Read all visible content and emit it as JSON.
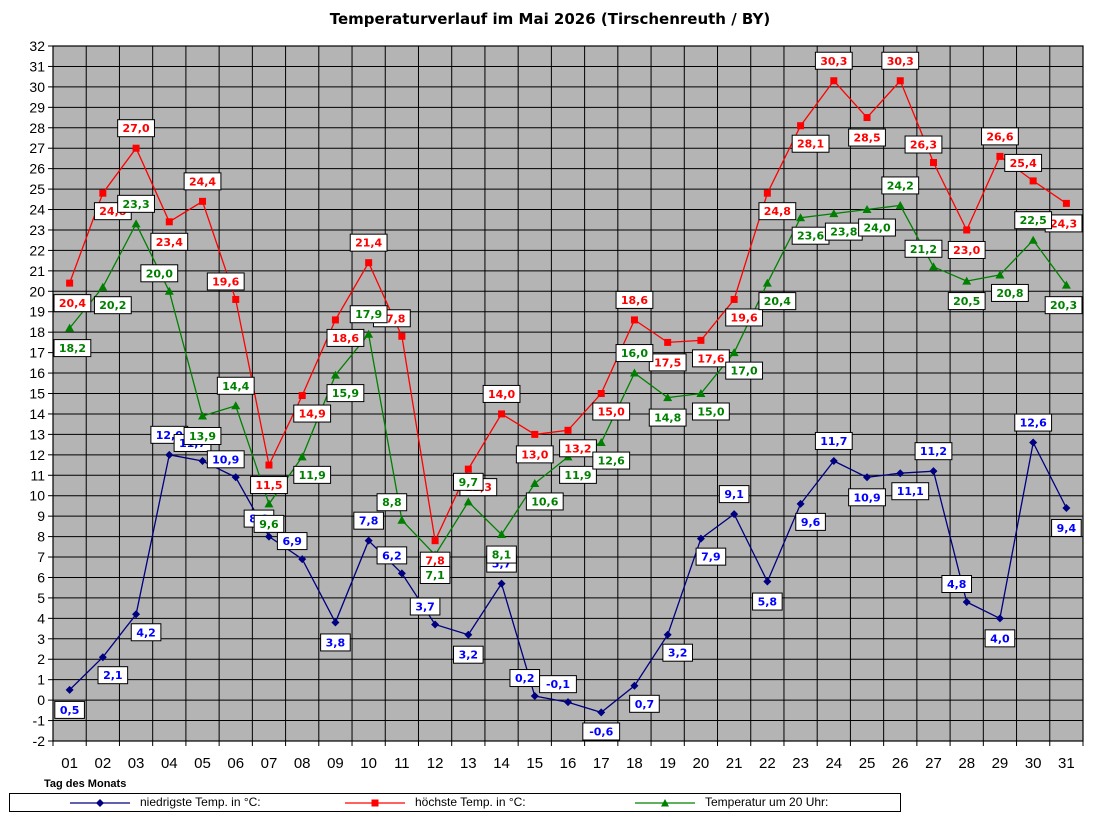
{
  "chart_data": {
    "type": "line",
    "title": "Temperaturverlauf im Mai 2026 (Tirschenreuth / BY)",
    "xlabel": "Tag des Monats",
    "ylabel": "",
    "ylim": [
      -2,
      32
    ],
    "y_ticks": [
      -2,
      -1,
      0,
      1,
      2,
      3,
      4,
      5,
      6,
      7,
      8,
      9,
      10,
      11,
      12,
      13,
      14,
      15,
      16,
      17,
      18,
      19,
      20,
      21,
      22,
      23,
      24,
      25,
      26,
      27,
      28,
      29,
      30,
      31,
      32
    ],
    "grid": true,
    "legend_position": "bottom",
    "categories": [
      "01",
      "02",
      "03",
      "04",
      "05",
      "06",
      "07",
      "08",
      "09",
      "10",
      "11",
      "12",
      "13",
      "14",
      "15",
      "16",
      "17",
      "18",
      "19",
      "20",
      "21",
      "22",
      "23",
      "24",
      "25",
      "26",
      "27",
      "28",
      "29",
      "30",
      "31"
    ],
    "series": [
      {
        "name": "niedrigste Temp. in °C:",
        "color": "#000080",
        "label_color": "#0000ff",
        "marker": "diamond",
        "values": [
          0.5,
          2.1,
          4.2,
          12.0,
          11.7,
          10.9,
          8.0,
          6.9,
          3.8,
          7.8,
          6.2,
          3.7,
          3.2,
          5.7,
          0.2,
          -0.1,
          -0.6,
          0.7,
          3.2,
          7.9,
          9.1,
          5.8,
          9.6,
          11.7,
          10.9,
          11.1,
          11.2,
          4.8,
          4.0,
          12.6,
          9.4
        ],
        "labels": [
          "0,5",
          "2,1",
          "4,2",
          "12,0",
          "11,7",
          "10,9",
          "8,0",
          "6,9",
          "3,8",
          "7,8",
          "6,2",
          "3,7",
          "3,2",
          "5,7",
          "0,2",
          "-0,1",
          "-0,6",
          "0,7",
          "3,2",
          "7,9",
          "9,1",
          "5,8",
          "9,6",
          "11,7",
          "10,9",
          "11,1",
          "11,2",
          "4,8",
          "4,0",
          "12,6",
          "9,4"
        ]
      },
      {
        "name": "höchste Temp. in °C:",
        "color": "#ff0000",
        "label_color": "#ff0000",
        "marker": "square",
        "values": [
          20.4,
          24.8,
          27.0,
          23.4,
          24.4,
          19.6,
          11.5,
          14.9,
          18.6,
          21.4,
          17.8,
          7.8,
          11.3,
          14.0,
          13.0,
          13.2,
          15.0,
          18.6,
          17.5,
          17.6,
          19.6,
          24.8,
          28.1,
          30.3,
          28.5,
          30.3,
          26.3,
          23.0,
          26.6,
          25.4,
          24.3
        ],
        "labels": [
          "20,4",
          "24,8",
          "27,0",
          "23,4",
          "24,4",
          "19,6",
          "11,5",
          "14,9",
          "18,6",
          "21,4",
          "17,8",
          "7,8",
          "11,3",
          "14,0",
          "13,0",
          "13,2",
          "15,0",
          "18,6",
          "17,5",
          "17,6",
          "19,6",
          "24,8",
          "28,1",
          "30,3",
          "28,5",
          "30,3",
          "26,3",
          "23,0",
          "26,6",
          "25,4",
          "24,3"
        ]
      },
      {
        "name": "Temperatur um 20 Uhr:",
        "color": "#008000",
        "label_color": "#008000",
        "marker": "triangle",
        "values": [
          18.2,
          20.2,
          23.3,
          20.0,
          13.9,
          14.4,
          9.6,
          11.9,
          15.9,
          17.9,
          8.8,
          7.1,
          9.7,
          8.1,
          10.6,
          11.9,
          12.6,
          16.0,
          14.8,
          15.0,
          17.0,
          20.4,
          23.6,
          23.8,
          24.0,
          24.2,
          21.2,
          20.5,
          20.8,
          22.5,
          20.3
        ],
        "labels": [
          "18,2",
          "20,2",
          "23,3",
          "20,0",
          "13,9",
          "14,4",
          "9,6",
          "11,9",
          "15,9",
          "17,9",
          "8,8",
          "7,1",
          "9,7",
          "8,1",
          "10,6",
          "11,9",
          "12,6",
          "16,0",
          "14,8",
          "15,0",
          "17,0",
          "20,4",
          "23,6",
          "23,8",
          "24,0",
          "24,2",
          "21,2",
          "20,5",
          "20,8",
          "22,5",
          "20,3"
        ]
      }
    ]
  }
}
